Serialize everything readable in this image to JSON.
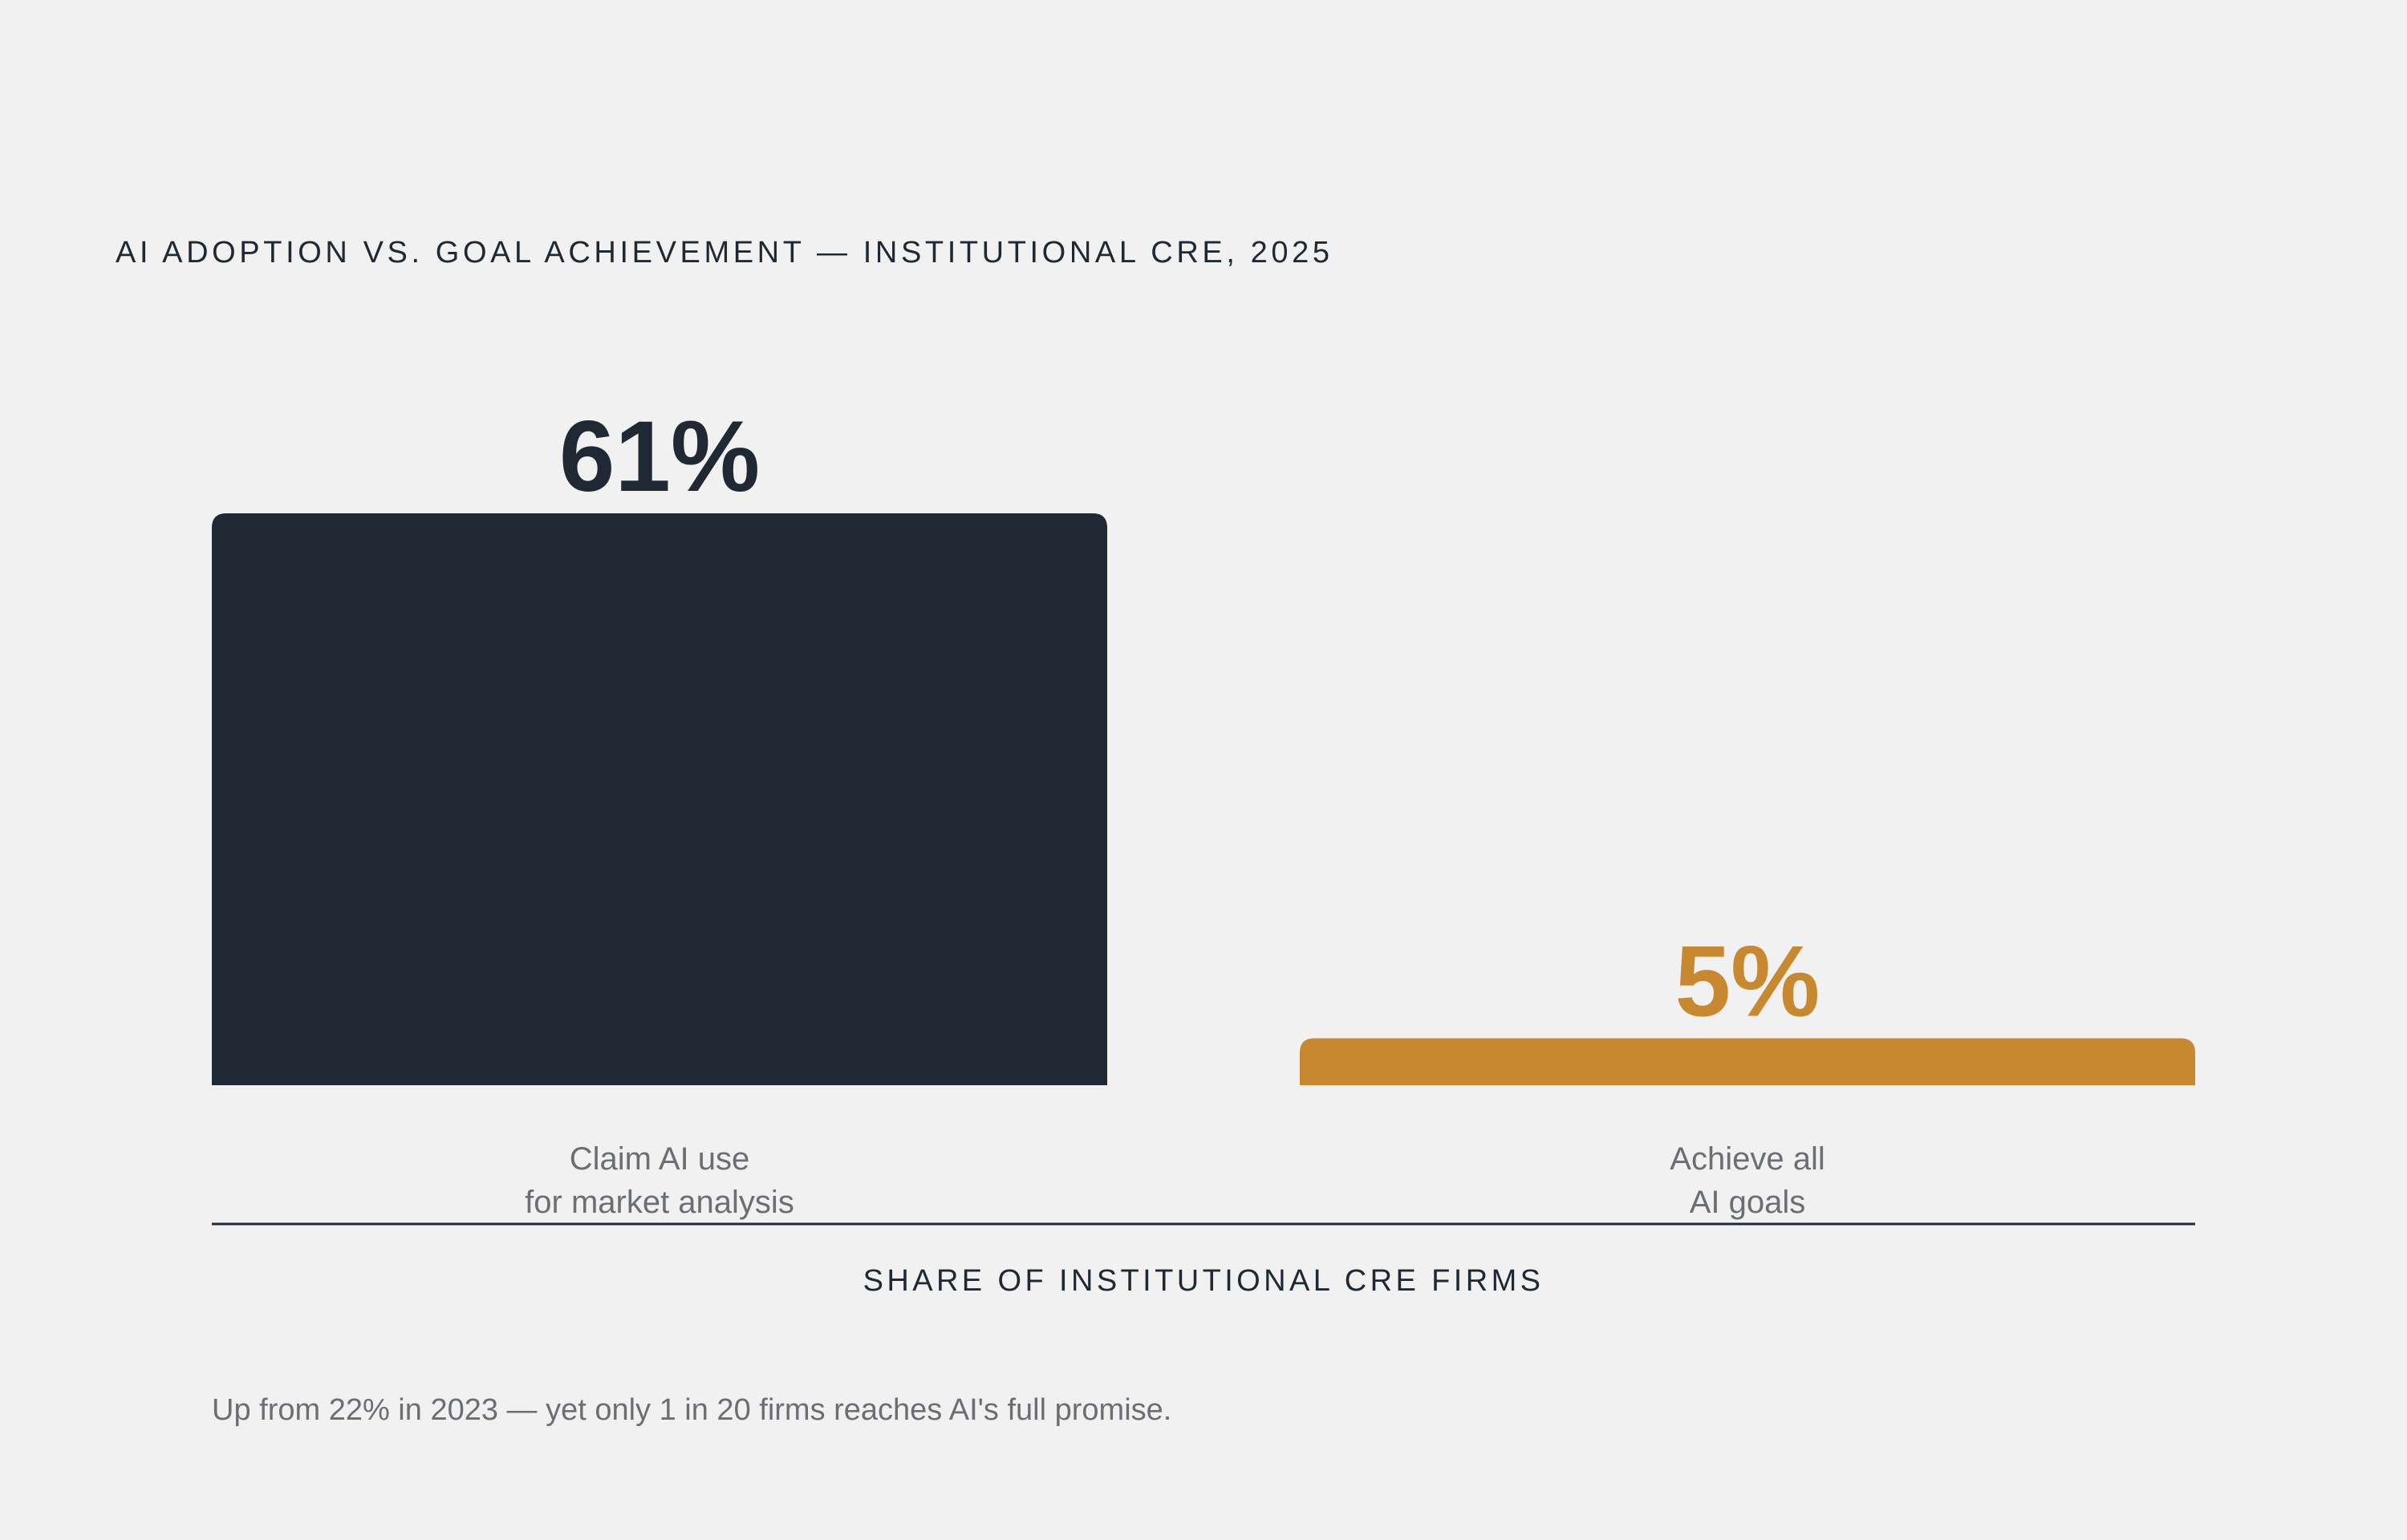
{
  "chart_data": {
    "type": "bar",
    "title": "AI ADOPTION VS. GOAL ACHIEVEMENT — INSTITUTIONAL CRE, 2025",
    "xlabel": "SHARE OF INSTITUTIONAL CRE FIRMS",
    "ylabel": "",
    "ylim": [
      0,
      61
    ],
    "grid": false,
    "categories": [
      [
        "Claim AI use",
        "for market analysis"
      ],
      [
        "Achieve all",
        "AI goals"
      ]
    ],
    "values": [
      61,
      5
    ],
    "value_labels": [
      "61%",
      "5%"
    ],
    "colors": [
      "#1f2833",
      "#c88830"
    ],
    "annotation": "Up from 22% in 2023 — yet only 1 in 20 firms reaches AI's full promise."
  }
}
